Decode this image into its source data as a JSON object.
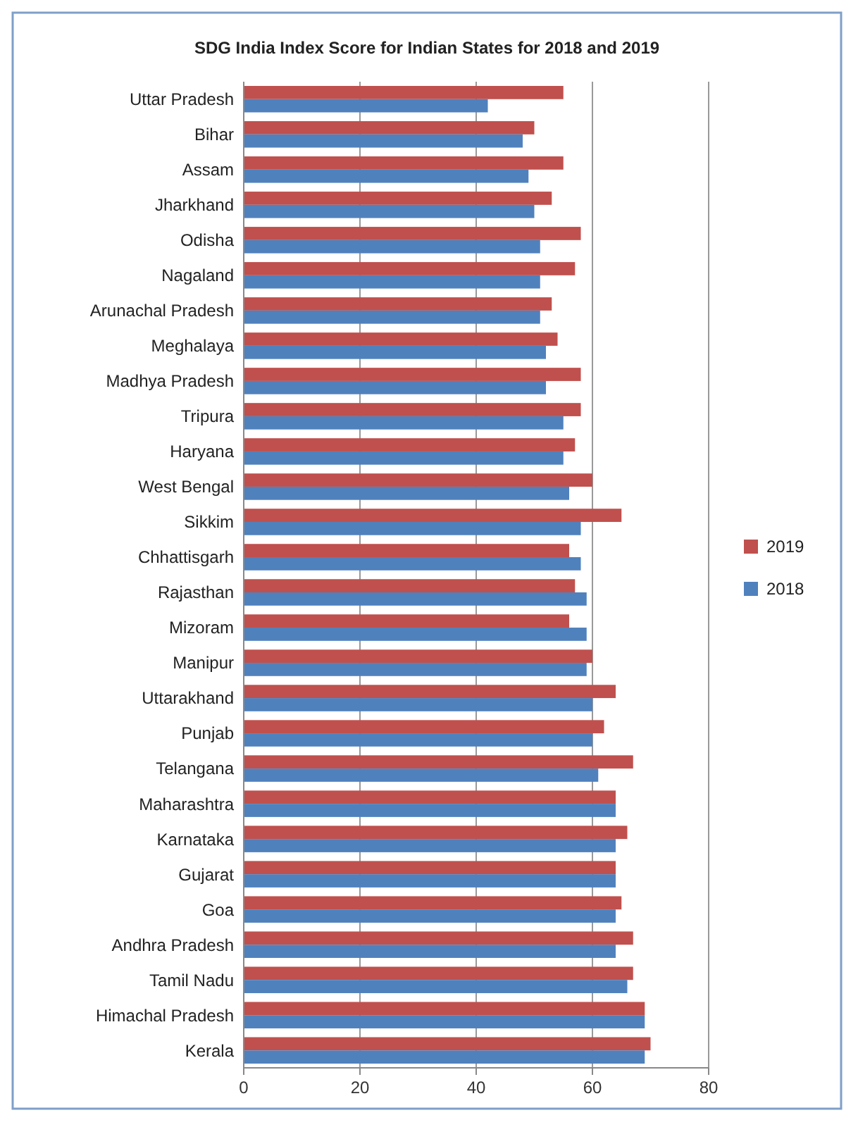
{
  "chart_data": {
    "type": "bar",
    "orientation": "horizontal",
    "title": "SDG India Index Score for Indian States for 2018 and 2019",
    "categories": [
      "Uttar Pradesh",
      "Bihar",
      "Assam",
      "Jharkhand",
      "Odisha",
      "Nagaland",
      "Arunachal Pradesh",
      "Meghalaya",
      "Madhya Pradesh",
      "Tripura",
      "Haryana",
      "West Bengal",
      "Sikkim",
      "Chhattisgarh",
      "Rajasthan",
      "Mizoram",
      "Manipur",
      "Uttarakhand",
      "Punjab",
      "Telangana",
      "Maharashtra",
      "Karnataka",
      "Gujarat",
      "Goa",
      "Andhra Pradesh",
      "Tamil Nadu",
      "Himachal Pradesh",
      "Kerala"
    ],
    "series": [
      {
        "name": "2019",
        "color": "#c0504d",
        "values": [
          55,
          50,
          55,
          53,
          58,
          57,
          53,
          54,
          58,
          58,
          57,
          60,
          65,
          56,
          57,
          56,
          60,
          64,
          62,
          67,
          64,
          66,
          64,
          65,
          67,
          67,
          69,
          70
        ]
      },
      {
        "name": "2018",
        "color": "#4f81bd",
        "values": [
          42,
          48,
          49,
          50,
          51,
          51,
          51,
          52,
          52,
          55,
          55,
          56,
          58,
          58,
          59,
          59,
          59,
          60,
          60,
          61,
          64,
          64,
          64,
          64,
          64,
          66,
          69,
          69
        ]
      }
    ],
    "xlim": [
      0,
      80
    ],
    "xticks": [
      0,
      20,
      40,
      60,
      80
    ],
    "grid": "x",
    "legend": "right"
  }
}
